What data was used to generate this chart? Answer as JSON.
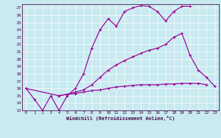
{
  "xlabel": "Windchill (Refroidissement éolien,°C)",
  "bg_color": "#c8eaf0",
  "line_color": "#990099",
  "grid_color": "#ffffff",
  "xlim": [
    -0.5,
    23.5
  ],
  "ylim": [
    13,
    27.5
  ],
  "xticks": [
    0,
    1,
    2,
    3,
    4,
    5,
    6,
    7,
    8,
    9,
    10,
    11,
    12,
    13,
    14,
    15,
    16,
    17,
    18,
    19,
    20,
    21,
    22,
    23
  ],
  "yticks": [
    13,
    14,
    15,
    16,
    17,
    18,
    19,
    20,
    21,
    22,
    23,
    24,
    25,
    26,
    27
  ],
  "lines": [
    {
      "x": [
        0,
        1,
        2,
        3,
        4,
        5,
        6,
        7,
        8,
        9,
        10,
        11,
        12,
        13,
        14,
        15,
        16,
        17,
        18,
        19,
        20
      ],
      "y": [
        16,
        14.5,
        13,
        15,
        13,
        15,
        16,
        18,
        21.5,
        24,
        25.5,
        24.5,
        26.5,
        27,
        27.3,
        27.2,
        26.5,
        25.2,
        26.5,
        27.2,
        27.2
      ]
    },
    {
      "x": [
        0,
        4,
        5,
        6,
        7,
        8,
        9,
        10,
        11,
        12,
        13,
        14,
        15,
        16,
        17,
        18,
        19,
        20,
        21,
        22
      ],
      "y": [
        16,
        15,
        15.2,
        15.3,
        15.5,
        15.7,
        15.8,
        16.0,
        16.2,
        16.3,
        16.4,
        16.5,
        16.5,
        16.5,
        16.6,
        16.6,
        16.7,
        16.7,
        16.7,
        16.5
      ]
    },
    {
      "x": [
        4,
        5,
        6,
        7,
        8,
        9,
        10,
        11,
        12,
        13,
        14,
        15,
        16,
        17,
        18,
        19,
        20,
        21,
        22,
        23
      ],
      "y": [
        15,
        15.2,
        15.5,
        15.8,
        16.5,
        17.5,
        18.5,
        19.2,
        19.8,
        20.3,
        20.8,
        21.2,
        21.5,
        22.0,
        23.0,
        23.5,
        20.5,
        18.5,
        17.5,
        16.3
      ]
    }
  ]
}
